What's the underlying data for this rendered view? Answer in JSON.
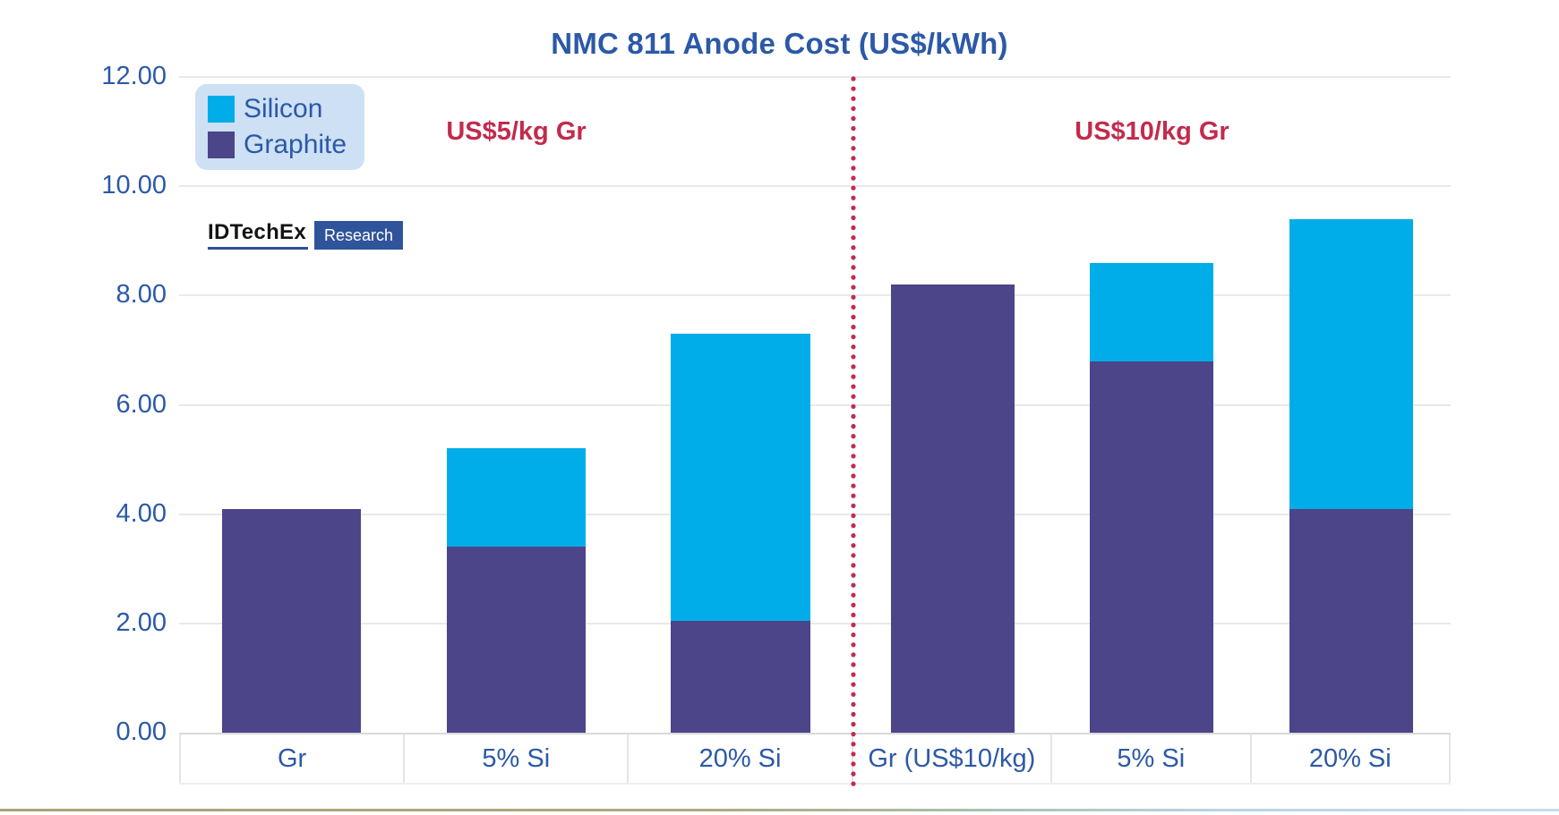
{
  "chart_title": "NMC 811 Anode Cost (US$/kWh)",
  "logo": {
    "brand": "IDTechEx",
    "suffix": "Research"
  },
  "legend": {
    "items": [
      {
        "label": "Silicon",
        "color": "#00ade8"
      },
      {
        "label": "Graphite",
        "color": "#4c4589"
      }
    ]
  },
  "chart_data": {
    "type": "bar",
    "stacked": true,
    "title": "NMC 811 Anode Cost (US$/kWh)",
    "xlabel": "",
    "ylabel": "US$/kWh",
    "ylim": [
      0,
      12
    ],
    "y_tick_labels": [
      "12.00",
      "10.00",
      "8.00",
      "6.00",
      "4.00",
      "2.00",
      "0.00"
    ],
    "grid": "horizontal",
    "legend_position": "top-left",
    "categories": [
      "Gr",
      "5% Si",
      "20% Si",
      "Gr (US$10/kg)",
      "5% Si",
      "20% Si"
    ],
    "series": [
      {
        "name": "Graphite",
        "color": "#4c4589",
        "values": [
          4.1,
          3.4,
          2.05,
          8.2,
          6.8,
          4.1
        ]
      },
      {
        "name": "Silicon",
        "color": "#00ade8",
        "values": [
          0,
          1.8,
          5.25,
          0,
          1.8,
          5.3
        ]
      }
    ],
    "totals": [
      4.1,
      5.2,
      7.3,
      8.2,
      8.6,
      9.4
    ],
    "groups": [
      {
        "label": "US$5/kg Gr",
        "span": 3
      },
      {
        "label": "US$10/kg Gr",
        "span": 3
      }
    ],
    "separator": {
      "style": "dotted",
      "color": "#c22b4c",
      "after_category_index": 2
    }
  },
  "colors": {
    "title_text": "#2c59a7",
    "axis_text": "#2c59a7",
    "annotation_text": "#c22b4c",
    "legend_background": "#cde0f4",
    "silicon": "#00ade8",
    "graphite": "#4c4589",
    "gridline": "#e9e9e9",
    "logo_badge": "#30549b"
  }
}
